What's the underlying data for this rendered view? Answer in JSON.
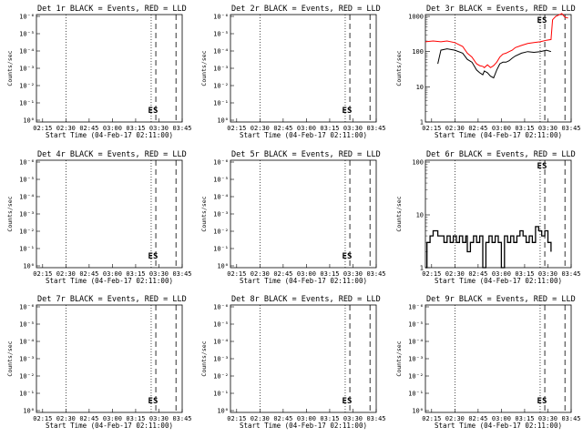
{
  "chart_data": [
    {
      "type": "line",
      "detector": "Det 1r",
      "title": "Det 1r BLACK = Events, RED = LLD",
      "xlabel": "Start Time (04-Feb-17 02:11:00)",
      "ylabel": "Counts/sec",
      "x_ticks": [
        "02:15",
        "02:30",
        "02:45",
        "03:00",
        "03:15",
        "03:30",
        "03:45"
      ],
      "y_scale": "log",
      "y_ticks": [
        "10⁰",
        "10⁻¹",
        "10⁻²",
        "10⁻³",
        "10⁻⁴",
        "10⁻⁵",
        "10⁻⁶"
      ],
      "marker_label": "ES",
      "series": []
    },
    {
      "type": "line",
      "detector": "Det 2r",
      "title": "Det 2r BLACK = Events, RED = LLD",
      "xlabel": "Start Time (04-Feb-17 02:11:00)",
      "ylabel": "Counts/sec",
      "x_ticks": [
        "02:15",
        "02:30",
        "02:45",
        "03:00",
        "03:15",
        "03:30",
        "03:45"
      ],
      "y_scale": "log",
      "y_ticks": [
        "10⁰",
        "10⁻¹",
        "10⁻²",
        "10⁻³",
        "10⁻⁴",
        "10⁻⁵",
        "10⁻⁶"
      ],
      "marker_label": "ES",
      "series": []
    },
    {
      "type": "line",
      "detector": "Det 3r",
      "title": "Det 3r BLACK = Events, RED = LLD",
      "xlabel": "Start Time (04-Feb-17 02:11:00)",
      "ylabel": "Counts/sec",
      "x_ticks": [
        "02:15",
        "02:30",
        "02:45",
        "03:00",
        "03:15",
        "03:30",
        "03:45"
      ],
      "y_scale": "log",
      "y_ticks": [
        "1",
        "10",
        "100",
        "1000"
      ],
      "marker_label": "ES",
      "series": [
        {
          "color": "#000000",
          "x": [
            8.0,
            10,
            14,
            19,
            24,
            27,
            30,
            33,
            35,
            37,
            38,
            40,
            42,
            44,
            46,
            48,
            50,
            52,
            54,
            56,
            58,
            62,
            66,
            70,
            74,
            78,
            81
          ],
          "y": [
            45,
            110,
            120,
            110,
            90,
            60,
            50,
            30,
            25,
            22,
            28,
            25,
            20,
            18,
            30,
            45,
            50,
            50,
            55,
            65,
            75,
            90,
            100,
            95,
            100,
            110,
            100
          ]
        },
        {
          "color": "#ff0000",
          "x": [
            0,
            5,
            10,
            14,
            19,
            24,
            27,
            30,
            33,
            35,
            37,
            38,
            40,
            42,
            44,
            46,
            48,
            50,
            52,
            54,
            56,
            58,
            62,
            66,
            70,
            74,
            78,
            81,
            82,
            84,
            86,
            88,
            90,
            92
          ],
          "y": [
            190,
            200,
            190,
            200,
            180,
            140,
            90,
            70,
            45,
            40,
            38,
            35,
            42,
            35,
            40,
            50,
            70,
            85,
            90,
            100,
            110,
            130,
            150,
            170,
            180,
            190,
            210,
            220,
            800,
            1000,
            1100,
            1200,
            950,
            900
          ]
        }
      ]
    },
    {
      "type": "line",
      "detector": "Det 4r",
      "title": "Det 4r BLACK = Events, RED = LLD",
      "xlabel": "Start Time (04-Feb-17 02:11:00)",
      "ylabel": "Counts/sec",
      "x_ticks": [
        "02:15",
        "02:30",
        "02:45",
        "03:00",
        "03:15",
        "03:30",
        "03:45"
      ],
      "y_scale": "log",
      "y_ticks": [
        "10⁰",
        "10⁻¹",
        "10⁻²",
        "10⁻³",
        "10⁻⁴",
        "10⁻⁵",
        "10⁻⁶"
      ],
      "marker_label": "ES",
      "series": []
    },
    {
      "type": "line",
      "detector": "Det 5r",
      "title": "Det 5r BLACK = Events, RED = LLD",
      "xlabel": "Start Time (04-Feb-17 02:11:00)",
      "ylabel": "Counts/sec",
      "x_ticks": [
        "02:15",
        "02:30",
        "02:45",
        "03:00",
        "03:15",
        "03:30",
        "03:45"
      ],
      "y_scale": "log",
      "y_ticks": [
        "10⁰",
        "10⁻¹",
        "10⁻²",
        "10⁻³",
        "10⁻⁴",
        "10⁻⁵",
        "10⁻⁶"
      ],
      "marker_label": "ES",
      "series": []
    },
    {
      "type": "line",
      "detector": "Det 6r",
      "title": "Det 6r BLACK = Events, RED = LLD",
      "xlabel": "Start Time (04-Feb-17 02:11:00)",
      "ylabel": "Counts/sec",
      "x_ticks": [
        "02:15",
        "02:30",
        "02:45",
        "03:00",
        "03:15",
        "03:30",
        "03:45"
      ],
      "y_scale": "log",
      "y_ticks": [
        "1",
        "10",
        "100"
      ],
      "marker_label": "ES",
      "series": [
        {
          "color": "#000000",
          "step": true,
          "x": [
            0,
            1,
            3,
            5,
            8,
            10,
            12,
            14,
            16,
            18,
            20,
            22,
            24,
            26,
            27,
            29,
            31,
            33,
            35,
            37,
            39,
            41,
            43,
            45,
            47,
            49,
            51,
            53,
            55,
            57,
            59,
            61,
            63,
            65,
            67,
            69,
            71,
            73,
            75,
            77,
            79,
            81
          ],
          "y": [
            1.0,
            3,
            4,
            5,
            4,
            4,
            3,
            4,
            3,
            4,
            3,
            4,
            3,
            4,
            2,
            3,
            4,
            3,
            4,
            1,
            3,
            4,
            3,
            4,
            3,
            1,
            4,
            3,
            4,
            3,
            4,
            5,
            4,
            3,
            4,
            3,
            6,
            5,
            4,
            5,
            3,
            2
          ]
        }
      ]
    },
    {
      "type": "line",
      "detector": "Det 7r",
      "title": "Det 7r BLACK = Events, RED = LLD",
      "xlabel": "Start Time (04-Feb-17 02:11:00)",
      "ylabel": "Counts/sec",
      "x_ticks": [
        "02:15",
        "02:30",
        "02:45",
        "03:00",
        "03:15",
        "03:30",
        "03:45"
      ],
      "y_scale": "log",
      "y_ticks": [
        "10⁰",
        "10⁻¹",
        "10⁻²",
        "10⁻³",
        "10⁻⁴",
        "10⁻⁵",
        "10⁻⁶"
      ],
      "marker_label": "ES",
      "series": []
    },
    {
      "type": "line",
      "detector": "Det 8r",
      "title": "Det 8r BLACK = Events, RED = LLD",
      "xlabel": "Start Time (04-Feb-17 02:11:00)",
      "ylabel": "Counts/sec",
      "x_ticks": [
        "02:15",
        "02:30",
        "02:45",
        "03:00",
        "03:15",
        "03:30",
        "03:45"
      ],
      "y_scale": "log",
      "y_ticks": [
        "10⁰",
        "10⁻¹",
        "10⁻²",
        "10⁻³",
        "10⁻⁴",
        "10⁻⁵",
        "10⁻⁶"
      ],
      "marker_label": "ES",
      "series": []
    },
    {
      "type": "line",
      "detector": "Det 9r",
      "title": "Det 9r BLACK = Events, RED = LLD",
      "xlabel": "Start Time (04-Feb-17 02:11:00)",
      "ylabel": "Counts/sec",
      "x_ticks": [
        "02:15",
        "02:30",
        "02:45",
        "03:00",
        "03:15",
        "03:30",
        "03:45"
      ],
      "y_scale": "log",
      "y_ticks": [
        "10⁰",
        "10⁻¹",
        "10⁻²",
        "10⁻³",
        "10⁻⁴",
        "10⁻⁵",
        "10⁻⁶"
      ],
      "marker_label": "ES",
      "series": []
    }
  ]
}
